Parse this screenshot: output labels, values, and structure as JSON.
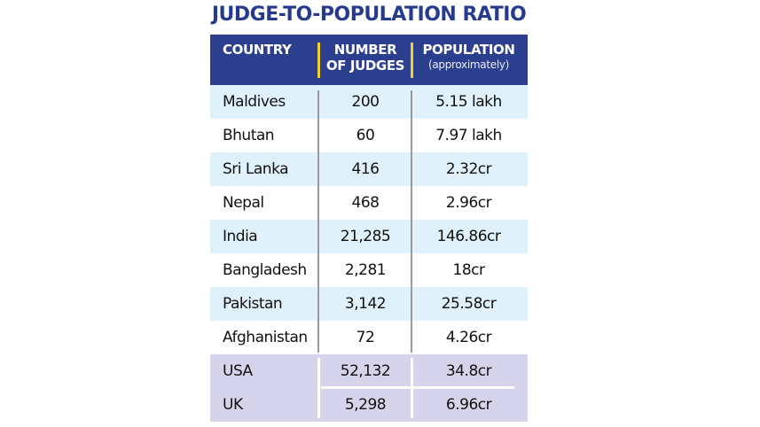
{
  "chart_data": {
    "type": "table",
    "title": "JUDGE-TO-POPULATION RATIO",
    "columns": [
      {
        "label": "COUNTRY",
        "sub": ""
      },
      {
        "label": "NUMBER OF JUDGES",
        "line1": "NUMBER",
        "line2": "OF JUDGES"
      },
      {
        "label": "POPULATION",
        "line1": "POPULATION",
        "sub": "(approximately)"
      }
    ],
    "rows": [
      {
        "country": "Maldives",
        "judges": "200",
        "population": "5.15 lakh"
      },
      {
        "country": "Bhutan",
        "judges": "60",
        "population": "7.97 lakh"
      },
      {
        "country": "Sri Lanka",
        "judges": "416",
        "population": "2.32cr"
      },
      {
        "country": "Nepal",
        "judges": "468",
        "population": "2.96cr"
      },
      {
        "country": "India",
        "judges": "21,285",
        "population": "146.86cr"
      },
      {
        "country": "Bangladesh",
        "judges": "2,281",
        "population": "18cr"
      },
      {
        "country": "Pakistan",
        "judges": "3,142",
        "population": "25.58cr"
      },
      {
        "country": "Afghanistan",
        "judges": "72",
        "population": "4.26cr"
      },
      {
        "country": "USA",
        "judges": "52,132",
        "population": "34.8cr"
      },
      {
        "country": "UK",
        "judges": "5,298",
        "population": "6.96cr"
      }
    ]
  },
  "colors": {
    "title": "#263a8e",
    "header_bg": "#2c3f8f",
    "header_separator": "#f0d020",
    "row_blue": "#dff1fa",
    "row_white": "#ffffff",
    "bottom_block": "#d6d4ea"
  }
}
